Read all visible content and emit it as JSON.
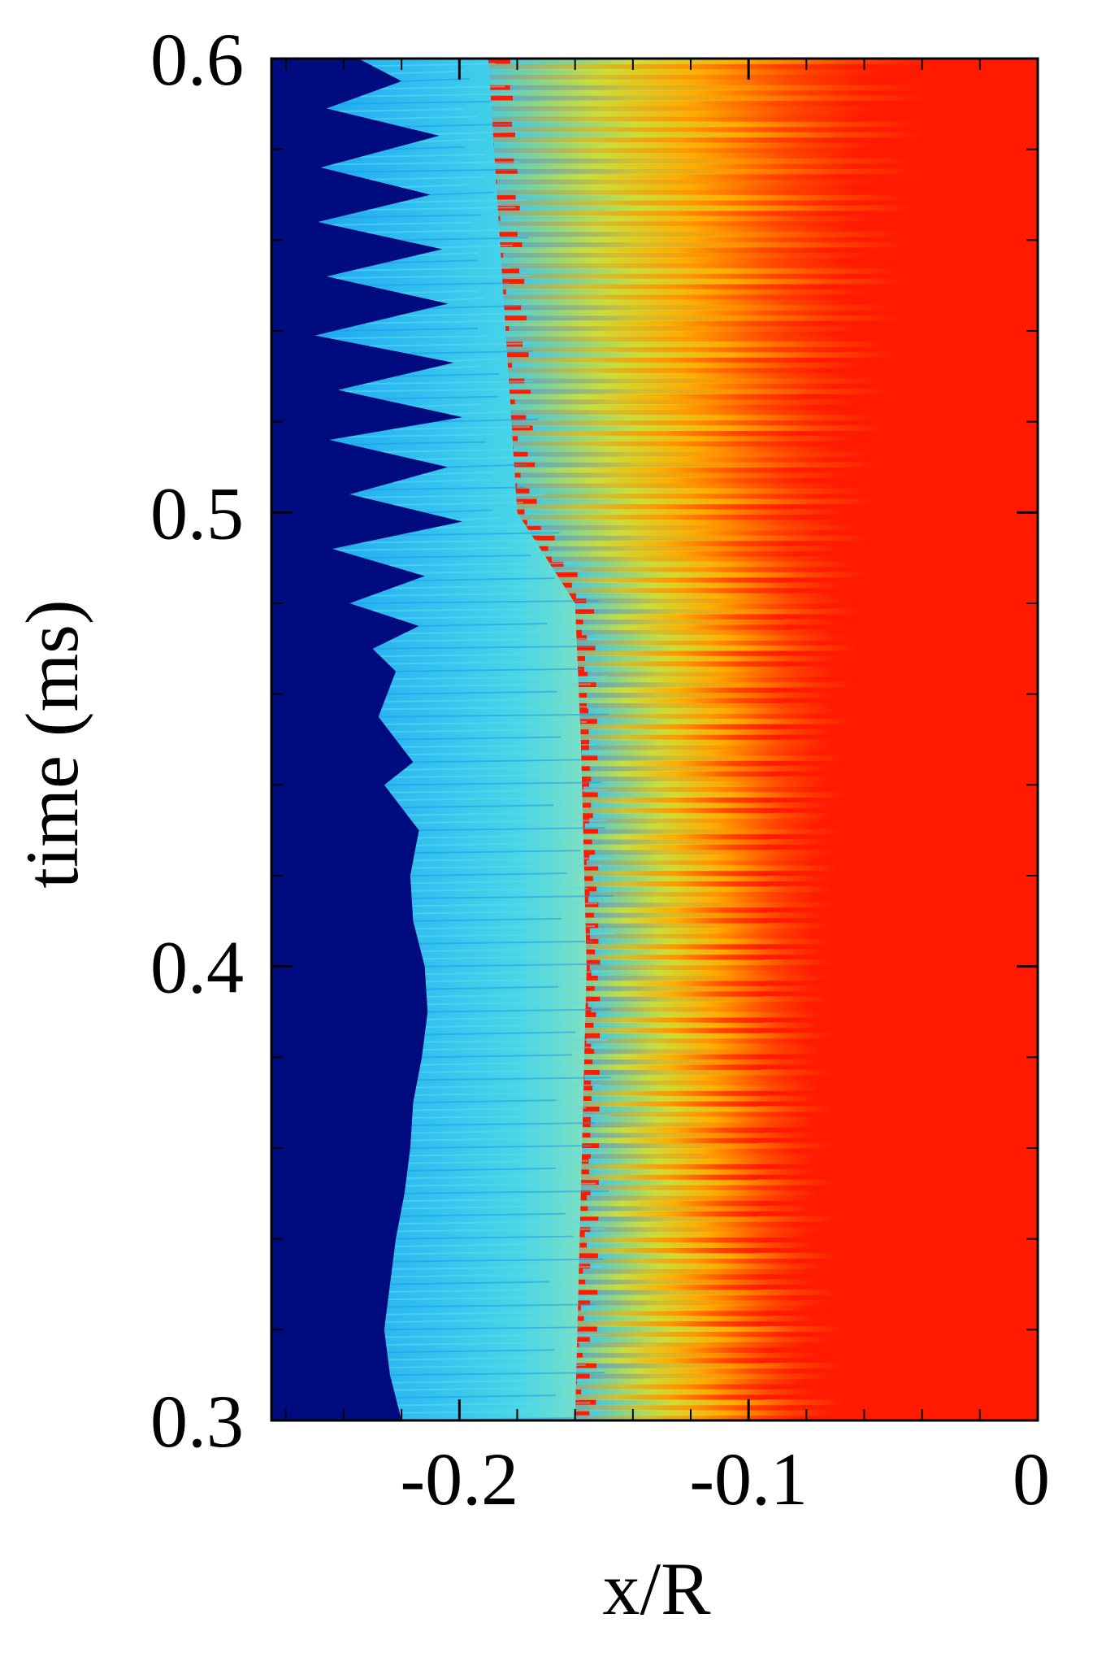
{
  "chart_data": {
    "type": "heatmap",
    "title": "",
    "xlabel": "x/R",
    "ylabel": "time (ms)",
    "xlim": [
      -0.265,
      0.0
    ],
    "ylim": [
      0.3,
      0.6
    ],
    "x_major_ticks": [
      -0.2,
      -0.1,
      0
    ],
    "x_tick_labels": [
      "-0.2",
      "-0.1",
      "0"
    ],
    "y_major_ticks": [
      0.3,
      0.4,
      0.5,
      0.6
    ],
    "y_tick_labels": [
      "0.3",
      "0.4",
      "0.5",
      "0.6"
    ],
    "x_minor_step": 0.02,
    "y_minor_step": 0.02,
    "colors": {
      "unburnt": "#000b80",
      "low": "#27b5f5",
      "mid_low": "#3bd0ef",
      "mid": "#e6e624",
      "mid_high": "#ff9900",
      "burnt": "#ff1a00"
    },
    "front_boundary": {
      "description_units": "x/R vs time (ms)",
      "points": [
        [
          -0.22,
          0.3
        ],
        [
          -0.224,
          0.31
        ],
        [
          -0.226,
          0.32
        ],
        [
          -0.224,
          0.33
        ],
        [
          -0.222,
          0.34
        ],
        [
          -0.219,
          0.35
        ],
        [
          -0.217,
          0.36
        ],
        [
          -0.216,
          0.37
        ],
        [
          -0.213,
          0.38
        ],
        [
          -0.211,
          0.39
        ],
        [
          -0.212,
          0.4
        ],
        [
          -0.216,
          0.41
        ],
        [
          -0.217,
          0.42
        ],
        [
          -0.214,
          0.43
        ],
        [
          -0.226,
          0.44
        ],
        [
          -0.216,
          0.445
        ],
        [
          -0.228,
          0.455
        ],
        [
          -0.222,
          0.465
        ],
        [
          -0.23,
          0.47
        ],
        [
          -0.214,
          0.475
        ],
        [
          -0.238,
          0.48
        ],
        [
          -0.212,
          0.486
        ],
        [
          -0.244,
          0.492
        ],
        [
          -0.199,
          0.498
        ],
        [
          -0.238,
          0.504
        ],
        [
          -0.204,
          0.51
        ],
        [
          -0.245,
          0.516
        ],
        [
          -0.199,
          0.521
        ],
        [
          -0.242,
          0.527
        ],
        [
          -0.202,
          0.533
        ],
        [
          -0.25,
          0.539
        ],
        [
          -0.204,
          0.546
        ],
        [
          -0.246,
          0.552
        ],
        [
          -0.206,
          0.558
        ],
        [
          -0.249,
          0.564
        ],
        [
          -0.21,
          0.57
        ],
        [
          -0.248,
          0.576
        ],
        [
          -0.207,
          0.583
        ],
        [
          -0.246,
          0.589
        ],
        [
          -0.22,
          0.595
        ],
        [
          -0.235,
          0.6
        ]
      ]
    },
    "burnt_boundary": {
      "points": [
        [
          -0.08,
          0.3
        ],
        [
          -0.082,
          0.35
        ],
        [
          -0.08,
          0.4
        ],
        [
          -0.076,
          0.45
        ],
        [
          -0.07,
          0.5
        ],
        [
          -0.06,
          0.55
        ],
        [
          -0.052,
          0.6
        ]
      ]
    },
    "reaction_band": {
      "points": [
        [
          -0.16,
          0.3
        ],
        [
          -0.158,
          0.35
        ],
        [
          -0.156,
          0.4
        ],
        [
          -0.158,
          0.45
        ],
        [
          -0.16,
          0.48
        ],
        [
          -0.18,
          0.5
        ],
        [
          -0.185,
          0.55
        ],
        [
          -0.19,
          0.6
        ]
      ]
    }
  }
}
